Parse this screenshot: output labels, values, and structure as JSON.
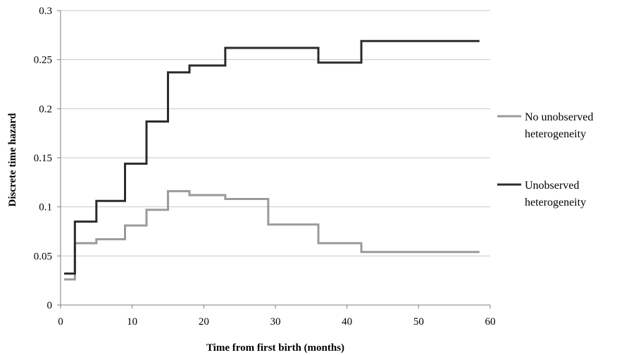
{
  "chart_data": {
    "type": "line",
    "title": "",
    "xlabel": "Time from first birth (months)",
    "ylabel": "Discrete time hazard",
    "xlim": [
      0,
      60
    ],
    "ylim": [
      0,
      0.3
    ],
    "x_ticks": [
      "0",
      "10",
      "20",
      "30",
      "40",
      "50",
      "60"
    ],
    "y_ticks": [
      "0",
      "0.05",
      "0.1",
      "0.15",
      "0.2",
      "0.25",
      "0.3"
    ],
    "grid": "horizontal",
    "legend_position": "right",
    "step": true,
    "series": [
      {
        "name": "No unobserved heterogeneity",
        "legend_lines": [
          "No unobserved",
          "heterogeneity"
        ],
        "color": "#9a9a9a",
        "points": [
          [
            0.5,
            0.026
          ],
          [
            2,
            0.063
          ],
          [
            5,
            0.067
          ],
          [
            9,
            0.081
          ],
          [
            12,
            0.097
          ],
          [
            15,
            0.116
          ],
          [
            18,
            0.112
          ],
          [
            23,
            0.108
          ],
          [
            29,
            0.082
          ],
          [
            36,
            0.063
          ],
          [
            42,
            0.054
          ],
          [
            58.5,
            0.054
          ]
        ]
      },
      {
        "name": "Unobserved heterogeneity",
        "legend_lines": [
          "Unobserved",
          "heterogeneity"
        ],
        "color": "#2b2b2b",
        "points": [
          [
            0.5,
            0.032
          ],
          [
            2,
            0.085
          ],
          [
            5,
            0.106
          ],
          [
            9,
            0.144
          ],
          [
            12,
            0.187
          ],
          [
            15,
            0.237
          ],
          [
            18,
            0.244
          ],
          [
            23,
            0.262
          ],
          [
            36,
            0.247
          ],
          [
            42,
            0.269
          ],
          [
            58.5,
            0.269
          ]
        ]
      }
    ]
  }
}
